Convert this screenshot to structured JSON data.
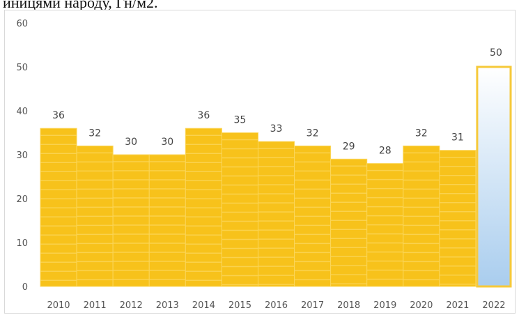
{
  "caption": "иницями народу, Гн/м2.",
  "colors": {
    "bar_fill": "#f7c21b",
    "bar_stripe": "#fbd65a",
    "highlight_fill_top": "#ffffff",
    "highlight_fill_bottom": "#a9cdee",
    "highlight_border": "#f6c93a",
    "axis_text": "#555555"
  },
  "chart_data": {
    "type": "bar",
    "categories": [
      "2010",
      "2011",
      "2012",
      "2013",
      "2014",
      "2015",
      "2016",
      "2017",
      "2018",
      "2019",
      "2020",
      "2021",
      "2022"
    ],
    "values": [
      36,
      32,
      30,
      30,
      36,
      35,
      33,
      32,
      29,
      28,
      32,
      31,
      50
    ],
    "ylim": [
      0,
      60
    ],
    "yticks": [
      0,
      10,
      20,
      30,
      40,
      50,
      60
    ],
    "highlight_category": "2022",
    "grid": false,
    "legend": "none",
    "title": "",
    "xlabel": "",
    "ylabel": ""
  }
}
